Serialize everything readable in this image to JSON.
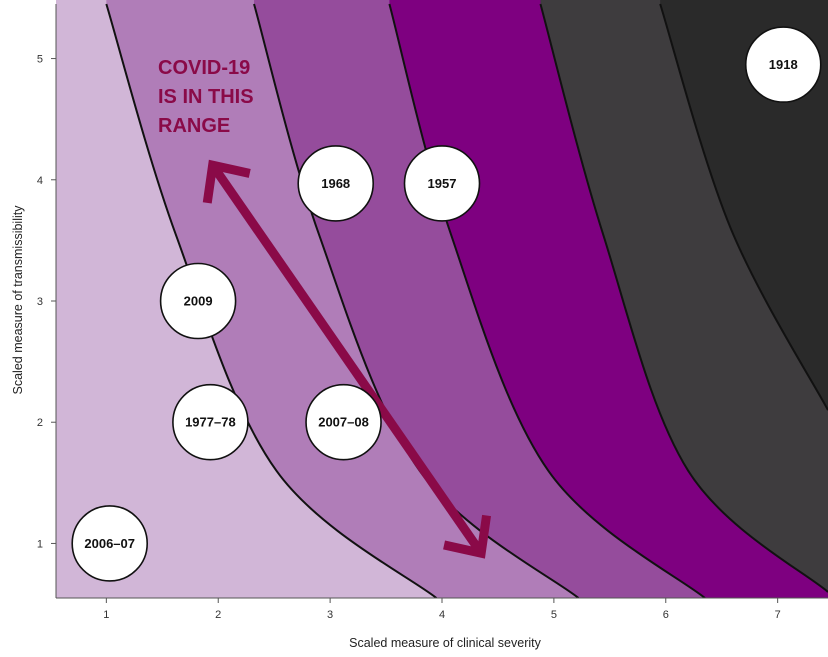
{
  "chart_data": {
    "type": "scatter",
    "xlabel": "Scaled measure of clinical severity",
    "ylabel": "Scaled measure of transmissibility",
    "xlim": [
      0.55,
      7.45
    ],
    "ylim": [
      0.55,
      5.45
    ],
    "x_ticks": [
      "1",
      "2",
      "3",
      "4",
      "5",
      "6",
      "7"
    ],
    "y_ticks": [
      "1",
      "2",
      "3",
      "4",
      "5"
    ],
    "grid": false,
    "background_bands": [
      {
        "color": "#d1b6d7"
      },
      {
        "color": "#b07db8"
      },
      {
        "color": "#954c9c"
      },
      {
        "color": "#7e0080"
      },
      {
        "color": "#3e3c3e"
      },
      {
        "color": "#2a2a2a"
      }
    ],
    "band_boundaries": [
      {
        "points": [
          [
            1.0,
            5.45
          ],
          [
            1.62,
            3.55
          ],
          [
            2.52,
            1.6
          ],
          [
            3.95,
            0.55
          ]
        ]
      },
      {
        "points": [
          [
            2.32,
            5.45
          ],
          [
            2.9,
            3.55
          ],
          [
            3.8,
            1.6
          ],
          [
            5.22,
            0.55
          ]
        ]
      },
      {
        "points": [
          [
            3.53,
            5.45
          ],
          [
            4.08,
            3.55
          ],
          [
            4.95,
            1.6
          ],
          [
            6.35,
            0.55
          ]
        ]
      },
      {
        "points": [
          [
            4.88,
            5.45
          ],
          [
            5.44,
            3.55
          ],
          [
            6.2,
            1.6
          ],
          [
            7.45,
            0.6
          ]
        ]
      },
      {
        "points": [
          [
            5.95,
            5.45
          ],
          [
            6.58,
            3.6
          ],
          [
            7.45,
            2.1
          ]
        ]
      }
    ],
    "points": [
      {
        "label": "1918",
        "x": 7.05,
        "y": 4.95
      },
      {
        "label": "1968",
        "x": 3.05,
        "y": 3.97
      },
      {
        "label": "1957",
        "x": 4.0,
        "y": 3.97
      },
      {
        "label": "2009",
        "x": 1.82,
        "y": 3.0
      },
      {
        "label": "1977–78",
        "x": 1.93,
        "y": 2.0
      },
      {
        "label": "2007–08",
        "x": 3.12,
        "y": 2.0
      },
      {
        "label": "2006–07",
        "x": 1.03,
        "y": 1.0
      }
    ],
    "annotation": {
      "lines": [
        "COVID-19",
        "IS IN THIS",
        "RANGE"
      ],
      "color": "#8a0a48",
      "arrow_from": [
        1.95,
        4.12
      ],
      "arrow_to": [
        4.35,
        0.92
      ]
    }
  }
}
